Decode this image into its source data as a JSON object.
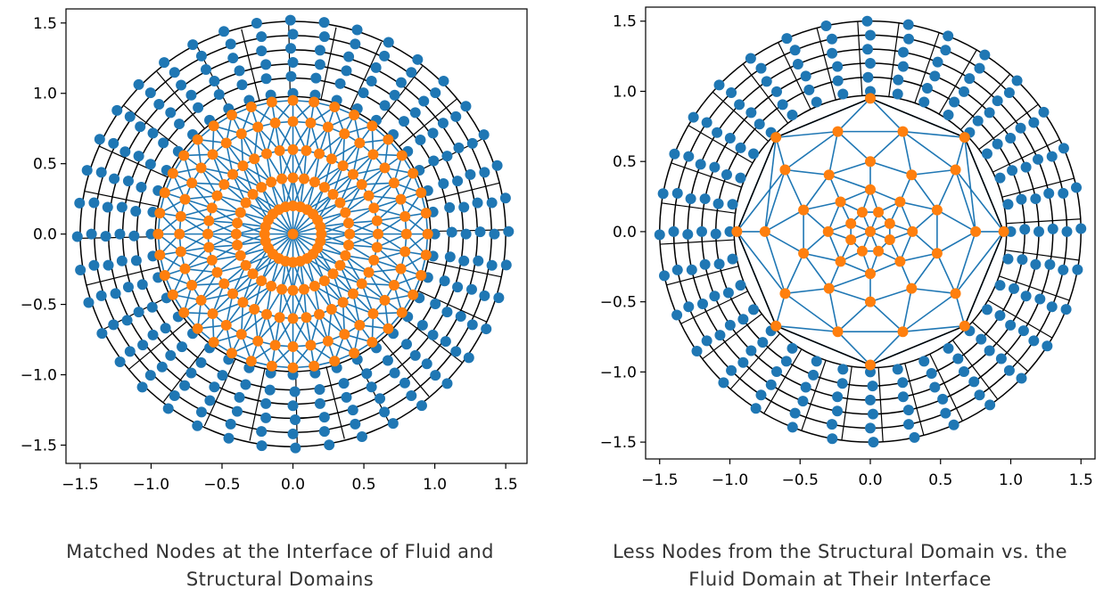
{
  "colors": {
    "fluid": "#1f77b4",
    "structure": "#ff7f0e",
    "interface": "#000000",
    "caption": "#333333"
  },
  "chart_data": [
    {
      "type": "scatter",
      "title": "",
      "xlabel": "",
      "ylabel": "",
      "xlim": [
        -1.6,
        1.65
      ],
      "ylim": [
        -1.63,
        1.6
      ],
      "xticks": [
        -1.5,
        -1.0,
        -0.5,
        0.0,
        0.5,
        1.0,
        1.5
      ],
      "yticks": [
        -1.5,
        -1.0,
        -0.5,
        0.0,
        0.5,
        1.0,
        1.5
      ],
      "xtick_labels": [
        "−1.5",
        "−1.0",
        "−0.5",
        "0.0",
        "0.5",
        "1.0",
        "1.5"
      ],
      "ytick_labels": [
        "−1.5",
        "−1.0",
        "−0.5",
        "0.0",
        "0.5",
        "1.0",
        "1.5"
      ],
      "caption": [
        "Matched Nodes at the Interface of Fluid and",
        "Structural Domains"
      ],
      "mesh": {
        "structure_rings": [
          0.2,
          0.4,
          0.6,
          0.8,
          0.95
        ],
        "structure_nodes_per_ring": [
          24,
          32,
          40,
          40,
          40
        ],
        "fluid_radii": [
          1.0,
          1.12,
          1.22,
          1.32,
          1.42,
          1.52
        ],
        "fluid_nodes_per_ring": 40,
        "interface_circles": [
          0.97,
          1.1,
          1.2,
          1.3,
          1.4,
          1.5
        ],
        "interface_spokes": 28,
        "spoke_range": [
          0.97,
          1.5
        ]
      },
      "series": [
        {
          "name": "",
          "kind": "fluid mesh nodes",
          "color": "#1f77b4"
        },
        {
          "name": "",
          "kind": "structural mesh nodes",
          "color": "#ff7f0e"
        }
      ]
    },
    {
      "type": "scatter",
      "title": "",
      "xlabel": "",
      "ylabel": "",
      "xlim": [
        -1.6,
        1.6
      ],
      "ylim": [
        -1.62,
        1.6
      ],
      "xticks": [
        -1.5,
        -1.0,
        -0.5,
        0.0,
        0.5,
        1.0,
        1.5
      ],
      "yticks": [
        -1.5,
        -1.0,
        -0.5,
        0.0,
        0.5,
        1.0,
        1.5
      ],
      "xtick_labels": [
        "−1.5",
        "−1.0",
        "−0.5",
        "0.0",
        "0.5",
        "1.0",
        "1.5"
      ],
      "ytick_labels": [
        "−1.5",
        "−1.0",
        "−0.5",
        "0.0",
        "0.5",
        "1.0",
        "1.5"
      ],
      "caption": [
        "Less Nodes from the Structural Domain vs. the",
        "Fluid Domain at Their Interface"
      ],
      "mesh": {
        "structure_rings": [
          0.15,
          0.3,
          0.5,
          0.75,
          0.95
        ],
        "structure_nodes_per_ring": [
          8,
          8,
          10,
          10,
          8
        ],
        "structure_ring_offsets_deg": [
          22.5,
          0,
          18,
          0,
          0
        ],
        "fluid_radii": [
          1.0,
          1.1,
          1.2,
          1.3,
          1.4,
          1.5
        ],
        "fluid_nodes_per_ring": 32,
        "interface_circles": [
          0.97,
          1.1,
          1.2,
          1.3,
          1.4,
          1.5
        ],
        "interface_spokes": 32,
        "spoke_range": [
          0.97,
          1.5
        ]
      },
      "series": [
        {
          "name": "",
          "kind": "fluid mesh nodes",
          "color": "#1f77b4"
        },
        {
          "name": "",
          "kind": "structural mesh nodes",
          "color": "#ff7f0e"
        }
      ]
    }
  ]
}
